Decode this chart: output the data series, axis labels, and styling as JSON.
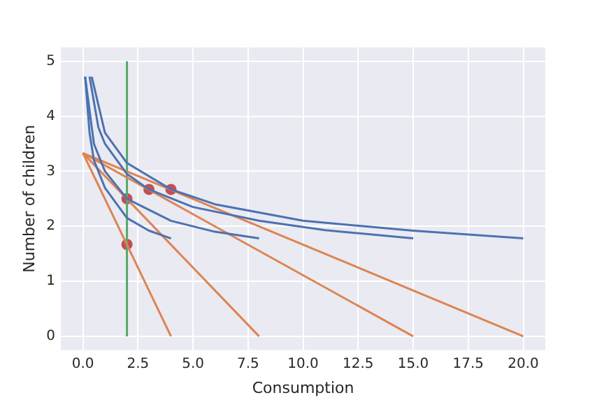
{
  "chart_data": {
    "type": "line",
    "xlabel": "Consumption",
    "ylabel": "Number of children",
    "xlim": [
      -1,
      21
    ],
    "ylim": [
      -0.25,
      5.25
    ],
    "xticks": [
      {
        "value": 0,
        "label": "0.0"
      },
      {
        "value": 2.5,
        "label": "2.5"
      },
      {
        "value": 5,
        "label": "5.0"
      },
      {
        "value": 7.5,
        "label": "7.5"
      },
      {
        "value": 10,
        "label": "10.0"
      },
      {
        "value": 12.5,
        "label": "12.5"
      },
      {
        "value": 15,
        "label": "15.0"
      },
      {
        "value": 17.5,
        "label": "17.5"
      },
      {
        "value": 20,
        "label": "20.0"
      }
    ],
    "yticks": [
      0,
      1,
      2,
      3,
      4,
      5
    ],
    "grid": true,
    "legend": false,
    "line_style": "solid",
    "series": [
      {
        "color": "#4c72b0",
        "marker": "none",
        "x": [
          0.1,
          0.3,
          0.5,
          1,
          2,
          3,
          4
        ],
        "values": [
          4.72,
          3.7,
          3.2,
          2.7,
          2.15,
          1.92,
          1.78
        ]
      },
      {
        "color": "#4c72b0",
        "marker": "none",
        "x": [
          0.1,
          0.5,
          1,
          2,
          4,
          6,
          8
        ],
        "values": [
          4.72,
          3.5,
          3.0,
          2.5,
          2.1,
          1.9,
          1.78
        ]
      },
      {
        "color": "#4c72b0",
        "marker": "none",
        "x": [
          0.3,
          0.7,
          1,
          2,
          3,
          5,
          8,
          11,
          15
        ],
        "values": [
          4.72,
          3.8,
          3.5,
          2.95,
          2.67,
          2.35,
          2.1,
          1.93,
          1.78
        ]
      },
      {
        "color": "#4c72b0",
        "marker": "none",
        "x": [
          0.4,
          1,
          2,
          4,
          6,
          10,
          15,
          20
        ],
        "values": [
          4.72,
          3.7,
          3.15,
          2.67,
          2.4,
          2.1,
          1.92,
          1.78
        ]
      },
      {
        "color": "#dd8452",
        "marker": "none",
        "x": [
          0,
          4
        ],
        "values": [
          3.33,
          0
        ]
      },
      {
        "color": "#dd8452",
        "marker": "none",
        "x": [
          0,
          8
        ],
        "values": [
          3.33,
          0
        ]
      },
      {
        "color": "#dd8452",
        "marker": "none",
        "x": [
          0,
          15
        ],
        "values": [
          3.33,
          0
        ]
      },
      {
        "color": "#dd8452",
        "marker": "none",
        "x": [
          0,
          20
        ],
        "values": [
          3.33,
          0
        ]
      },
      {
        "color": "#55a868",
        "marker": "none",
        "x": [
          2,
          2
        ],
        "values": [
          0,
          5
        ]
      },
      {
        "type": "scatter",
        "color": "#c44e52",
        "marker": "circle",
        "x": [
          2,
          2,
          3,
          4
        ],
        "values": [
          1.67,
          2.5,
          2.67,
          2.67
        ]
      }
    ]
  }
}
